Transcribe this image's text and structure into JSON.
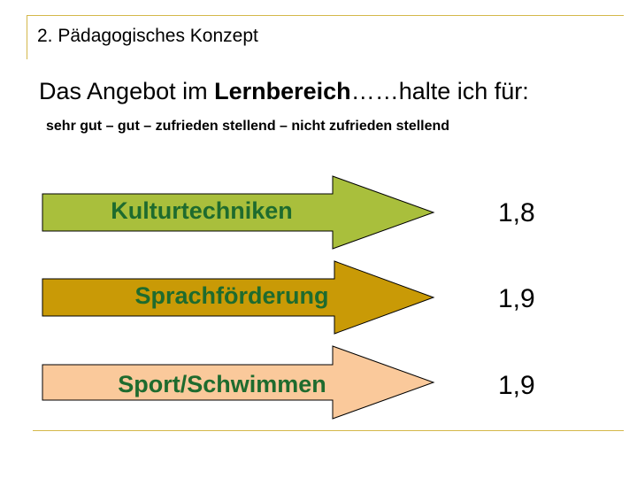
{
  "slide": {
    "title": "2. Pädagogisches Konzept",
    "question_prefix": "Das Angebot im ",
    "question_bold": "Lernbereich",
    "question_suffix": "……halte ich für:",
    "scale": "sehr gut – gut – zufrieden stellend – nicht zufrieden stellend"
  },
  "items": [
    {
      "label": "Kulturtechniken",
      "rating": "1,8",
      "color": "#a9bf3c"
    },
    {
      "label": "Sprachförderung",
      "rating": "1,9",
      "color": "#c99a06"
    },
    {
      "label": "Sport/Schwimmen",
      "rating": "1,9",
      "color": "#fac99b"
    }
  ],
  "colors": {
    "accent_line": "#d4b84a",
    "label_text": "#1e6b2e",
    "arrow_outline": "#000000"
  }
}
